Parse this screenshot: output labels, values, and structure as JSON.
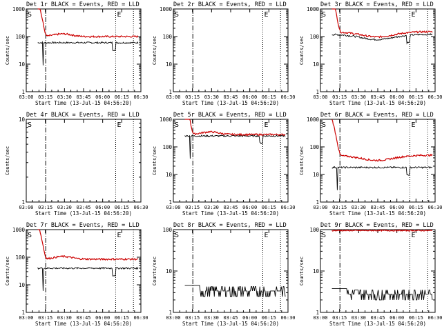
{
  "chart_data": [
    {
      "type": "line",
      "title": "Det 1r BLACK = Events, RED = LLD",
      "xlabel": "Start Time (13-Jul-15 04:56:20)",
      "ylabel": "Counts/sec",
      "yscale": "log",
      "ylim": [
        1,
        1000
      ],
      "yticks": [
        "1",
        "10",
        "100",
        "1000"
      ],
      "xticks": [
        "03:00",
        "03:15",
        "03:30",
        "03:45",
        "06:00",
        "06:15",
        "06:30"
      ],
      "markers": {
        "start": "S",
        "end": "E"
      },
      "series": [
        {
          "color": "#000000",
          "level": 60,
          "profile": "spike_then_flat",
          "dip_end": true
        },
        {
          "color": "#cc0000",
          "level": 100,
          "profile": "decay_then_flat",
          "dip_end": false
        }
      ]
    },
    {
      "type": "line",
      "title": "Det 2r BLACK = Events, RED = LLD",
      "xlabel": "Start Time (13-Jul-15 04:56:20)",
      "ylabel": "Counts/sec",
      "yscale": "log",
      "ylim": [
        1,
        1000
      ],
      "yticks": [
        "1",
        "10",
        "100",
        "1000"
      ],
      "xticks": [
        "03:00",
        "03:15",
        "03:30",
        "03:45",
        "06:00",
        "06:15",
        "06:30"
      ],
      "markers": {
        "start": "S",
        "end": "E"
      },
      "series": []
    },
    {
      "type": "line",
      "title": "Det 3r BLACK = Events, RED = LLD",
      "xlabel": "Start Time (13-Jul-15 04:56:20)",
      "ylabel": "Counts/sec",
      "yscale": "log",
      "ylim": [
        1,
        1000
      ],
      "yticks": [
        "1",
        "10",
        "100",
        "1000"
      ],
      "xticks": [
        "03:00",
        "03:15",
        "03:30",
        "03:45",
        "06:00",
        "06:15",
        "06:30"
      ],
      "markers": {
        "start": "S",
        "end": "E"
      },
      "series": [
        {
          "color": "#000000",
          "level": 120,
          "profile": "trough",
          "dip_end": true
        },
        {
          "color": "#cc0000",
          "level": 150,
          "profile": "decay_trough",
          "dip_end": false
        }
      ]
    },
    {
      "type": "line",
      "title": "Det 4r BLACK = Events, RED = LLD",
      "xlabel": "Start Time (13-Jul-15 04:56:20)",
      "ylabel": "Counts/sec",
      "yscale": "log",
      "ylim": [
        1,
        10
      ],
      "yticks": [
        "1",
        "10"
      ],
      "xticks": [
        "03:00",
        "03:15",
        "03:30",
        "03:45",
        "06:00",
        "06:15",
        "06:30"
      ],
      "markers": {
        "start": "S",
        "end": "E"
      },
      "series": []
    },
    {
      "type": "line",
      "title": "Det 5r BLACK = Events, RED = LLD",
      "xlabel": "Start Time (13-Jul-15 04:56:20)",
      "ylabel": "Counts/sec",
      "yscale": "log",
      "ylim": [
        1,
        1000
      ],
      "yticks": [
        "1",
        "10",
        "100",
        "1000"
      ],
      "xticks": [
        "03:00",
        "03:15",
        "03:30",
        "03:45",
        "06:00",
        "06:15",
        "06:30"
      ],
      "markers": {
        "start": "S",
        "end": "E"
      },
      "series": [
        {
          "color": "#000000",
          "level": 250,
          "profile": "spike_then_flat",
          "dip_end": true
        },
        {
          "color": "#cc0000",
          "level": 280,
          "profile": "decay_then_flat",
          "dip_end": false
        }
      ]
    },
    {
      "type": "line",
      "title": "Det 6r BLACK = Events, RED = LLD",
      "xlabel": "Start Time (13-Jul-15 04:56:20)",
      "ylabel": "Counts/sec",
      "yscale": "log",
      "ylim": [
        1,
        1000
      ],
      "yticks": [
        "1",
        "10",
        "100",
        "1000"
      ],
      "xticks": [
        "03:00",
        "03:15",
        "03:30",
        "03:45",
        "06:00",
        "06:15",
        "06:30"
      ],
      "markers": {
        "start": "S",
        "end": "E"
      },
      "series": [
        {
          "color": "#000000",
          "level": 18,
          "profile": "spike_then_flat",
          "dip_end": true
        },
        {
          "color": "#cc0000",
          "level": 50,
          "profile": "decay_trough",
          "dip_end": false
        }
      ]
    },
    {
      "type": "line",
      "title": "Det 7r BLACK = Events, RED = LLD",
      "xlabel": "Start Time (13-Jul-15 04:56:20)",
      "ylabel": "Counts/sec",
      "yscale": "log",
      "ylim": [
        1,
        1000
      ],
      "yticks": [
        "1",
        "10",
        "100",
        "1000"
      ],
      "xticks": [
        "03:00",
        "03:15",
        "03:30",
        "03:45",
        "06:00",
        "06:15",
        "06:30"
      ],
      "markers": {
        "start": "S",
        "end": "E"
      },
      "series": [
        {
          "color": "#000000",
          "level": 40,
          "profile": "spike_then_flat",
          "dip_end": true
        },
        {
          "color": "#cc0000",
          "level": 85,
          "profile": "decay_then_flat",
          "dip_end": false
        }
      ]
    },
    {
      "type": "line",
      "title": "Det 8r BLACK = Events, RED = LLD",
      "xlabel": "Start Time (13-Jul-15 04:56:20)",
      "ylabel": "Counts/sec",
      "yscale": "log",
      "ylim": [
        1,
        100
      ],
      "yticks": [
        "1",
        "10",
        "100"
      ],
      "xticks": [
        "03:00",
        "03:15",
        "03:30",
        "03:45",
        "06:00",
        "06:15",
        "06:30"
      ],
      "markers": {
        "start": "S",
        "end": "E"
      },
      "series": [
        {
          "color": "#000000",
          "level": 3,
          "profile": "noisy_low",
          "dip_end": false
        }
      ]
    },
    {
      "type": "line",
      "title": "Det 9r BLACK = Events, RED = LLD",
      "xlabel": "Start Time (13-Jul-15 04:56:20)",
      "ylabel": "Counts/sec",
      "yscale": "log",
      "ylim": [
        1,
        100
      ],
      "yticks": [
        "1",
        "10",
        "100"
      ],
      "xticks": [
        "03:00",
        "03:15",
        "03:30",
        "03:45",
        "06:00",
        "06:15",
        "06:30"
      ],
      "markers": {
        "start": "S",
        "end": "E"
      },
      "series": [
        {
          "color": "#000000",
          "level": 2.5,
          "profile": "noisy_low",
          "dip_end": false
        },
        {
          "color": "#cc0000",
          "level": 95,
          "profile": "flat_top",
          "dip_end": false
        }
      ]
    }
  ]
}
